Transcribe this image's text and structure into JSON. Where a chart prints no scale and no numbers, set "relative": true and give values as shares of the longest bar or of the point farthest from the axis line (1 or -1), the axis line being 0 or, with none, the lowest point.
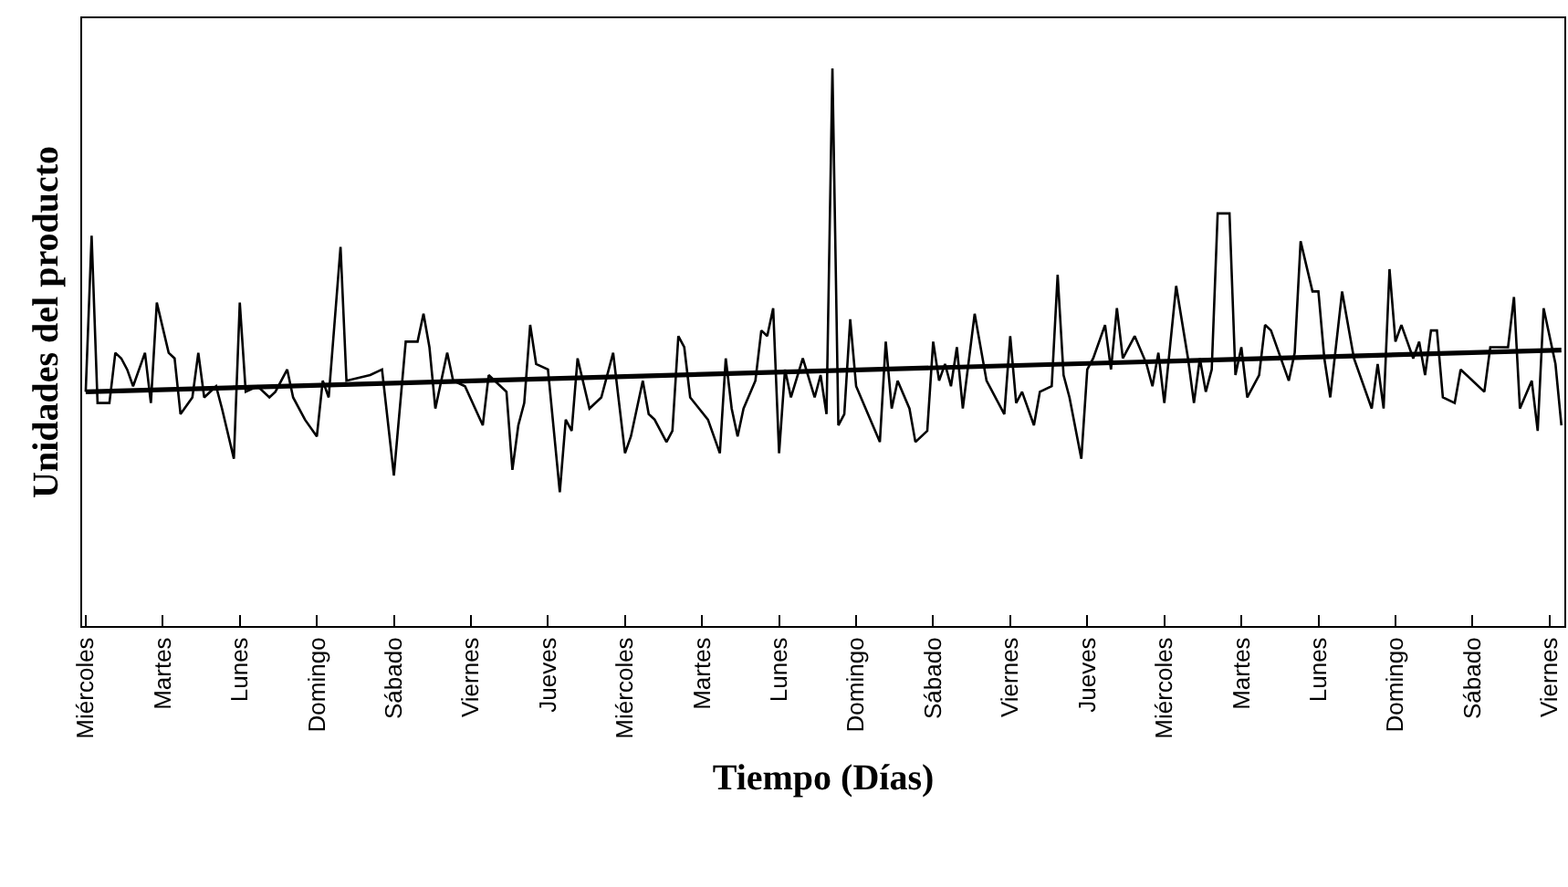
{
  "chart_data": {
    "type": "line",
    "relative": true,
    "xlabel": "Tiempo (Días)",
    "ylabel": "Unidades del producto",
    "tick_labels": "x",
    "categories": [
      "Miércoles",
      null,
      null,
      null,
      null,
      null,
      null,
      null,
      null,
      null,
      null,
      null,
      null,
      "Martes",
      null,
      null,
      null,
      null,
      null,
      null,
      null,
      null,
      null,
      null,
      null,
      null,
      "Lunes",
      null,
      null,
      null,
      null,
      null,
      null,
      null,
      null,
      null,
      null,
      null,
      null,
      "Domingo",
      null,
      null,
      null,
      null,
      null,
      null,
      null,
      null,
      null,
      null,
      null,
      null,
      "Sábado",
      null,
      null,
      null,
      null,
      null,
      null,
      null,
      null,
      null,
      null,
      null,
      null,
      "Viernes",
      null,
      null,
      null,
      null,
      null,
      null,
      null,
      null,
      null,
      null,
      null,
      null,
      "Jueves",
      null,
      null,
      null,
      null,
      null,
      null,
      null,
      null,
      null,
      null,
      null,
      null,
      "Miércoles",
      null,
      null,
      null,
      null,
      null,
      null,
      null,
      null,
      null,
      null,
      null,
      null,
      "Martes",
      null,
      null,
      null,
      null,
      null,
      null,
      null,
      null,
      null,
      null,
      null,
      null,
      "Lunes",
      null,
      null,
      null,
      null,
      null,
      null,
      null,
      null,
      null,
      null,
      null,
      null,
      "Domingo",
      null,
      null,
      null,
      null,
      null,
      null,
      null,
      null,
      null,
      null,
      null,
      null,
      "Sábado",
      null,
      null,
      null,
      null,
      null,
      null,
      null,
      null,
      null,
      null,
      null,
      null,
      "Viernes",
      null,
      null,
      null,
      null,
      null,
      null,
      null,
      null,
      null,
      null,
      null,
      null,
      "Jueves",
      null,
      null,
      null,
      null,
      null,
      null,
      null,
      null,
      null,
      null,
      null,
      null,
      "Miércoles",
      null,
      null,
      null,
      null,
      null,
      null,
      null,
      null,
      null,
      null,
      null,
      null,
      "Martes",
      null,
      null,
      null,
      null,
      null,
      null,
      null,
      null,
      null,
      null,
      null,
      null,
      "Lunes",
      null,
      null,
      null,
      null,
      null,
      null,
      null,
      null,
      null,
      null,
      null,
      null,
      "Domingo",
      null,
      null,
      null,
      null,
      null,
      null,
      null,
      null,
      null,
      null,
      null,
      null,
      "Sábado",
      null,
      null,
      null,
      null,
      null,
      null,
      null,
      null,
      null,
      null,
      null,
      null,
      "Viernes",
      null,
      null
    ],
    "series": [
      {
        "color": "#000000",
        "values": [
          0.42,
          0.7,
          0.4,
          null,
          0.4,
          0.49,
          0.48,
          0.46,
          0.43,
          null,
          0.49,
          0.4,
          0.58,
          null,
          0.49,
          0.48,
          0.38,
          null,
          0.41,
          0.49,
          0.41,
          null,
          0.43,
          0.39,
          null,
          0.3,
          0.58,
          0.42,
          null,
          0.43,
          null,
          0.41,
          0.42,
          null,
          0.46,
          0.41,
          null,
          0.37,
          null,
          0.34,
          0.44,
          0.41,
          null,
          0.68,
          0.44,
          null,
          null,
          null,
          0.45,
          null,
          0.46,
          null,
          0.27,
          null,
          0.51,
          null,
          0.51,
          0.56,
          0.5,
          0.39,
          null,
          0.49,
          0.44,
          null,
          0.43,
          null,
          null,
          0.36,
          0.45,
          null,
          0.43,
          0.42,
          0.28,
          0.36,
          0.4,
          0.54,
          0.47,
          null,
          0.46,
          null,
          0.24,
          0.37,
          0.35,
          0.48,
          null,
          0.39,
          null,
          0.41,
          null,
          0.49,
          null,
          0.31,
          0.34,
          null,
          0.44,
          0.38,
          0.37,
          null,
          0.33,
          0.35,
          0.52,
          0.5,
          0.41,
          null,
          null,
          0.37,
          null,
          0.31,
          0.48,
          0.39,
          0.34,
          0.39,
          null,
          0.44,
          0.53,
          0.52,
          0.57,
          0.31,
          0.46,
          0.41,
          null,
          0.48,
          null,
          0.41,
          0.45,
          0.38,
          1.0,
          0.36,
          0.38,
          0.55,
          0.43,
          null,
          0.38,
          null,
          0.33,
          0.51,
          0.39,
          0.44,
          null,
          0.39,
          0.33,
          null,
          0.35,
          0.51,
          0.44,
          0.47,
          0.43,
          0.5,
          0.39,
          null,
          0.56,
          null,
          0.44,
          null,
          null,
          0.38,
          0.52,
          0.4,
          0.42,
          null,
          0.36,
          0.42,
          null,
          0.43,
          0.63,
          0.45,
          0.41,
          null,
          0.3,
          0.46,
          0.48,
          null,
          0.54,
          0.46,
          0.57,
          0.48,
          null,
          0.52,
          null,
          0.47,
          0.43,
          0.49,
          0.4,
          null,
          0.61,
          null,
          0.48,
          0.4,
          0.48,
          0.42,
          0.46,
          0.74,
          null,
          0.74,
          0.45,
          0.5,
          0.41,
          null,
          0.45,
          0.54,
          0.53,
          null,
          null,
          0.44,
          0.49,
          0.69,
          null,
          0.6,
          0.6,
          0.48,
          0.41,
          null,
          0.6,
          null,
          0.48,
          null,
          null,
          0.39,
          0.47,
          0.39,
          0.64,
          0.51,
          0.54,
          0.51,
          0.48,
          0.51,
          0.45,
          0.53,
          0.53,
          0.41,
          null,
          0.4,
          0.46,
          0.45,
          null,
          null,
          0.42,
          0.5,
          null,
          0.5,
          0.5,
          0.59,
          0.39,
          null,
          0.44,
          0.35,
          0.57,
          null,
          0.47,
          0.36
        ]
      },
      {
        "color": "#000000",
        "values": [
          0.42,
          null,
          null,
          null,
          null,
          null,
          null,
          null,
          null,
          null,
          null,
          null,
          null,
          null,
          null,
          null,
          null,
          null,
          null,
          null,
          null,
          null,
          null,
          null,
          null,
          null,
          null,
          null,
          null,
          null,
          null,
          null,
          null,
          null,
          null,
          null,
          null,
          null,
          null,
          null,
          null,
          null,
          null,
          null,
          null,
          null,
          null,
          null,
          null,
          null,
          null,
          null,
          null,
          null,
          null,
          null,
          null,
          null,
          null,
          null,
          null,
          null,
          null,
          null,
          null,
          null,
          null,
          null,
          null,
          null,
          null,
          null,
          null,
          null,
          null,
          null,
          null,
          null,
          null,
          null,
          null,
          null,
          null,
          null,
          null,
          null,
          null,
          null,
          null,
          null,
          null,
          null,
          null,
          null,
          null,
          null,
          null,
          null,
          null,
          null,
          null,
          null,
          null,
          null,
          null,
          null,
          null,
          null,
          null,
          null,
          null,
          null,
          null,
          null,
          null,
          null,
          null,
          null,
          null,
          null,
          null,
          null,
          null,
          null,
          null,
          null,
          null,
          null,
          null,
          null,
          null,
          null,
          null,
          null,
          null,
          null,
          null,
          null,
          null,
          null,
          null,
          null,
          null,
          null,
          null,
          null,
          null,
          null,
          null,
          null,
          null,
          null,
          null,
          null,
          null,
          null,
          null,
          null,
          null,
          null,
          null,
          null,
          null,
          null,
          null,
          null,
          null,
          null,
          null,
          null,
          null,
          null,
          null,
          null,
          null,
          null,
          null,
          null,
          null,
          null,
          null,
          null,
          null,
          null,
          null,
          null,
          null,
          null,
          null,
          null,
          null,
          null,
          null,
          null,
          null,
          null,
          null,
          null,
          null,
          null,
          null,
          null,
          null,
          null,
          null,
          null,
          null,
          null,
          null,
          null,
          null,
          null,
          null,
          null,
          null,
          null,
          null,
          null,
          null,
          null,
          null,
          null,
          null,
          null,
          null,
          null,
          null,
          null,
          null,
          null,
          null,
          null,
          null,
          null,
          null,
          null,
          null,
          null,
          null,
          null,
          null,
          null,
          null,
          null,
          null,
          null,
          null,
          null,
          null,
          0.495
        ]
      }
    ]
  }
}
